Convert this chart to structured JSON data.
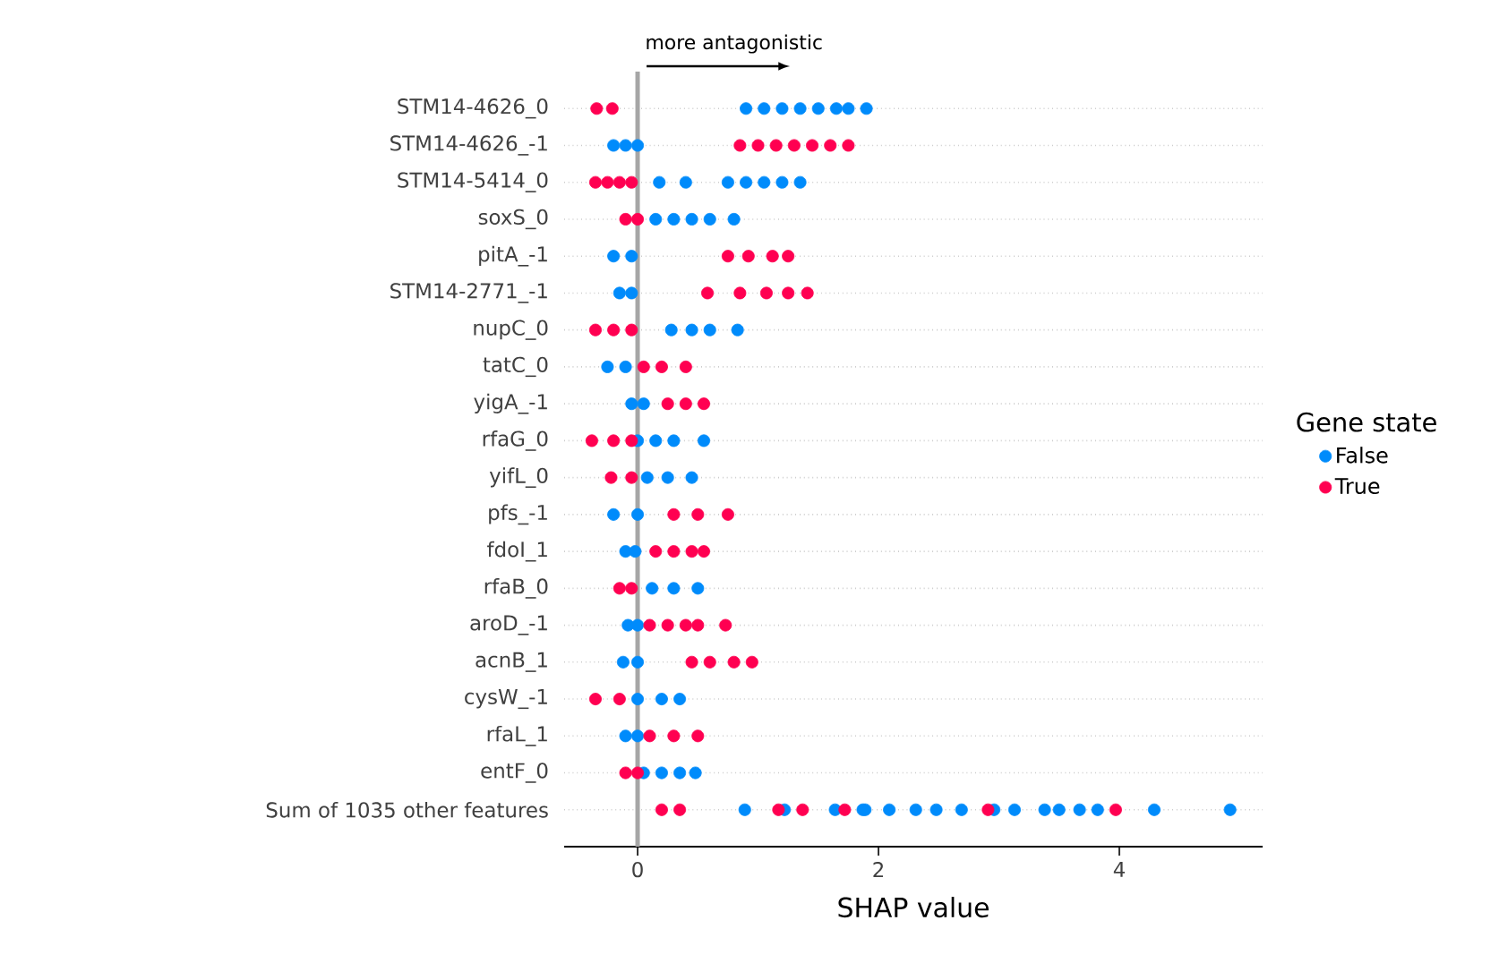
{
  "chart_data": {
    "type": "scatter",
    "orientation": "horizontal",
    "xlabel": "SHAP value",
    "legend_title": "Gene state",
    "categories": [
      "STM14-4626_0",
      "STM14-4626_-1",
      "STM14-5414_0",
      "soxS_0",
      "pitA_-1",
      "STM14-2771_-1",
      "nupC_0",
      "tatC_0",
      "yigA_-1",
      "rfaG_0",
      "yifL_0",
      "pfs_-1",
      "fdoI_1",
      "rfaB_0",
      "aroD_-1",
      "acnB_1",
      "cysW_-1",
      "rfaL_1",
      "entF_0",
      "Sum of 1035 other features"
    ],
    "series": [
      {
        "name": "False",
        "color": "#008bfb",
        "values": [
          0.9,
          -0.2,
          0.18,
          0.15,
          -0.2,
          -0.15,
          0.28,
          -0.25,
          -0.05,
          0,
          0.08,
          -0.2,
          -0.1,
          0.12,
          -0.08,
          -0.12,
          0,
          -0.1,
          0.05,
          0.89
        ]
      },
      {
        "color": "#008bfb",
        "values": [
          1.05,
          -0.1,
          0.4,
          0.3,
          -0.05,
          -0.05,
          0.45,
          -0.1,
          0.05,
          0.15,
          0.25,
          0,
          -0.02,
          0.3,
          0,
          0,
          0.2,
          0,
          0.2,
          1.22
        ]
      },
      {
        "color": "#008bfb",
        "values": [
          1.2,
          0,
          0.75,
          0.45,
          null,
          null,
          0.6,
          null,
          null,
          0.3,
          0.45,
          null,
          null,
          0.5,
          null,
          null,
          0.35,
          null,
          0.35,
          1.64
        ]
      },
      {
        "color": "#008bfb",
        "values": [
          1.35,
          null,
          0.9,
          0.6,
          null,
          null,
          0.83,
          null,
          null,
          0.55,
          null,
          null,
          null,
          null,
          null,
          null,
          null,
          null,
          0.48,
          1.87
        ]
      },
      {
        "color": "#008bfb",
        "values": [
          1.5,
          null,
          1.05,
          0.8,
          null,
          null,
          null,
          null,
          null,
          null,
          null,
          null,
          null,
          null,
          null,
          null,
          null,
          null,
          null,
          1.89
        ]
      },
      {
        "color": "#008bfb",
        "values": [
          1.65,
          null,
          1.2,
          null,
          null,
          null,
          null,
          null,
          null,
          null,
          null,
          null,
          null,
          null,
          null,
          null,
          null,
          null,
          null,
          2.09
        ]
      },
      {
        "color": "#008bfb",
        "values": [
          1.75,
          null,
          1.35,
          null,
          null,
          null,
          null,
          null,
          null,
          null,
          null,
          null,
          null,
          null,
          null,
          null,
          null,
          null,
          null,
          2.31
        ]
      },
      {
        "color": "#008bfb",
        "values": [
          1.9,
          null,
          null,
          null,
          null,
          null,
          null,
          null,
          null,
          null,
          null,
          null,
          null,
          null,
          null,
          null,
          null,
          null,
          null,
          2.48
        ]
      },
      {
        "color": "#008bfb",
        "values": [
          null,
          null,
          null,
          null,
          null,
          null,
          null,
          null,
          null,
          null,
          null,
          null,
          null,
          null,
          null,
          null,
          null,
          null,
          null,
          2.69
        ]
      },
      {
        "color": "#008bfb",
        "values": [
          null,
          null,
          null,
          null,
          null,
          null,
          null,
          null,
          null,
          null,
          null,
          null,
          null,
          null,
          null,
          null,
          null,
          null,
          null,
          2.96
        ]
      },
      {
        "color": "#008bfb",
        "values": [
          null,
          null,
          null,
          null,
          null,
          null,
          null,
          null,
          null,
          null,
          null,
          null,
          null,
          null,
          null,
          null,
          null,
          null,
          null,
          3.13
        ]
      },
      {
        "color": "#008bfb",
        "values": [
          null,
          null,
          null,
          null,
          null,
          null,
          null,
          null,
          null,
          null,
          null,
          null,
          null,
          null,
          null,
          null,
          null,
          null,
          null,
          3.38
        ]
      },
      {
        "color": "#008bfb",
        "values": [
          null,
          null,
          null,
          null,
          null,
          null,
          null,
          null,
          null,
          null,
          null,
          null,
          null,
          null,
          null,
          null,
          null,
          null,
          null,
          3.5
        ]
      },
      {
        "color": "#008bfb",
        "values": [
          null,
          null,
          null,
          null,
          null,
          null,
          null,
          null,
          null,
          null,
          null,
          null,
          null,
          null,
          null,
          null,
          null,
          null,
          null,
          3.67
        ]
      },
      {
        "color": "#008bfb",
        "values": [
          null,
          null,
          null,
          null,
          null,
          null,
          null,
          null,
          null,
          null,
          null,
          null,
          null,
          null,
          null,
          null,
          null,
          null,
          null,
          3.82
        ]
      },
      {
        "color": "#008bfb",
        "values": [
          null,
          null,
          null,
          null,
          null,
          null,
          null,
          null,
          null,
          null,
          null,
          null,
          null,
          null,
          null,
          null,
          null,
          null,
          null,
          4.29
        ]
      },
      {
        "color": "#008bfb",
        "values": [
          null,
          null,
          null,
          null,
          null,
          null,
          null,
          null,
          null,
          null,
          null,
          null,
          null,
          null,
          null,
          null,
          null,
          null,
          null,
          4.92
        ]
      },
      {
        "name": "True",
        "color": "#ff0051",
        "values": [
          -0.34,
          0.85,
          -0.35,
          -0.1,
          0.75,
          0.58,
          -0.35,
          0.05,
          0.25,
          -0.38,
          -0.22,
          0.3,
          0.15,
          -0.15,
          0.1,
          0.45,
          -0.35,
          0.1,
          -0.1,
          0.2
        ]
      },
      {
        "color": "#ff0051",
        "values": [
          -0.21,
          1.0,
          -0.25,
          0,
          0.92,
          0.85,
          -0.2,
          0.2,
          0.4,
          -0.2,
          -0.05,
          0.5,
          0.3,
          -0.05,
          0.25,
          0.6,
          -0.15,
          0.3,
          0,
          0.35
        ]
      },
      {
        "color": "#ff0051",
        "values": [
          null,
          1.15,
          -0.15,
          null,
          1.12,
          1.07,
          -0.05,
          0.4,
          0.55,
          -0.05,
          null,
          0.75,
          0.45,
          null,
          0.4,
          0.8,
          null,
          0.5,
          null,
          1.17
        ]
      },
      {
        "color": "#ff0051",
        "values": [
          null,
          1.3,
          -0.05,
          null,
          1.25,
          1.25,
          null,
          null,
          null,
          null,
          null,
          null,
          0.55,
          null,
          0.5,
          0.95,
          null,
          null,
          null,
          1.37
        ]
      },
      {
        "color": "#ff0051",
        "values": [
          null,
          1.45,
          null,
          null,
          null,
          1.41,
          null,
          null,
          null,
          null,
          null,
          null,
          null,
          null,
          0.73,
          null,
          null,
          null,
          null,
          1.72
        ]
      },
      {
        "color": "#ff0051",
        "values": [
          null,
          1.6,
          null,
          null,
          null,
          null,
          null,
          null,
          null,
          null,
          null,
          null,
          null,
          null,
          null,
          null,
          null,
          null,
          null,
          2.91
        ]
      },
      {
        "color": "#ff0051",
        "values": [
          null,
          1.75,
          null,
          null,
          null,
          null,
          null,
          null,
          null,
          null,
          null,
          null,
          null,
          null,
          null,
          null,
          null,
          null,
          null,
          3.97
        ]
      }
    ],
    "xlim": [
      -0.61,
      5.19
    ],
    "xticks": [
      0,
      2,
      4
    ],
    "ref_lines": [
      {
        "axis": "x",
        "value": 0,
        "color": "#a6a6a6"
      }
    ],
    "annotations": [
      "more antagonistic"
    ],
    "grid": "y",
    "legend": "right"
  }
}
